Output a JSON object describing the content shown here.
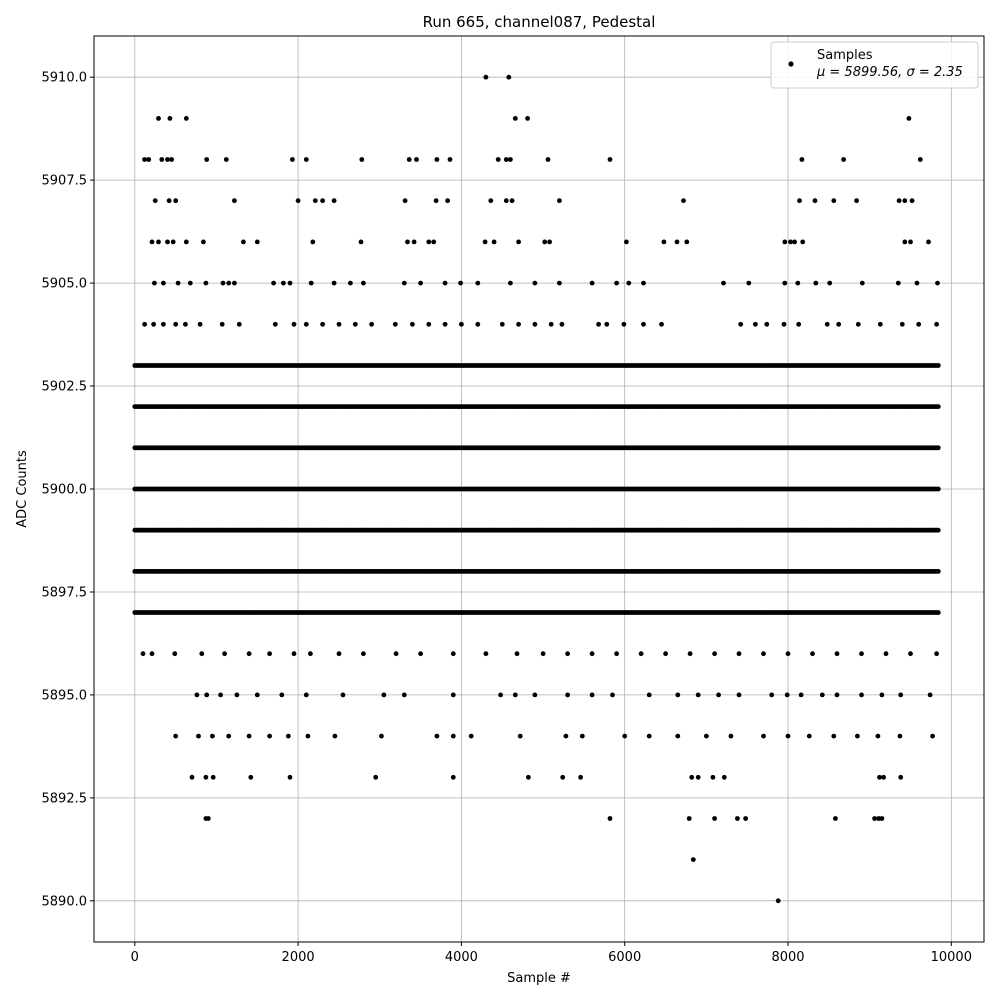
{
  "chart_data": {
    "type": "scatter",
    "title": "Run 665, channel087, Pedestal",
    "xlabel": "Sample #",
    "ylabel": "ADC Counts",
    "xlim": [
      -500,
      10400
    ],
    "ylim": [
      5889.0,
      5911.0
    ],
    "x_ticks": [
      0,
      2000,
      4000,
      6000,
      8000,
      10000
    ],
    "x_tick_labels": [
      "0",
      "2000",
      "4000",
      "6000",
      "8000",
      "10000"
    ],
    "y_ticks": [
      5890.0,
      5892.5,
      5895.0,
      5897.5,
      5900.0,
      5902.5,
      5905.0,
      5907.5,
      5910.0
    ],
    "y_tick_labels": [
      "5890.0",
      "5892.5",
      "5895.0",
      "5897.5",
      "5900.0",
      "5902.5",
      "5905.0",
      "5907.5",
      "5910.0"
    ],
    "grid": true,
    "legend": {
      "position": "top-right",
      "label_line1": "Samples",
      "label_line2": "μ = 5899.56, σ = 2.35"
    },
    "marker_color": "#000000",
    "series": [
      {
        "name": "Samples",
        "level_ranges": [
          {
            "y": 5903,
            "x_start": 0,
            "x_end": 9850
          },
          {
            "y": 5902,
            "x_start": 0,
            "x_end": 9850
          },
          {
            "y": 5901,
            "x_start": 0,
            "x_end": 9850
          },
          {
            "y": 5900,
            "x_start": 0,
            "x_end": 9850
          },
          {
            "y": 5899,
            "x_start": 0,
            "x_end": 9850
          },
          {
            "y": 5898,
            "x_start": 0,
            "x_end": 9850
          },
          {
            "y": 5897,
            "x_start": 0,
            "x_end": 9850
          }
        ],
        "points": [
          [
            4300,
            5910
          ],
          [
            4580,
            5910
          ],
          [
            290,
            5909
          ],
          [
            430,
            5909
          ],
          [
            630,
            5909
          ],
          [
            4660,
            5909
          ],
          [
            4810,
            5909
          ],
          [
            9480,
            5909
          ],
          [
            120,
            5908
          ],
          [
            170,
            5908
          ],
          [
            330,
            5908
          ],
          [
            400,
            5908
          ],
          [
            450,
            5908
          ],
          [
            880,
            5908
          ],
          [
            1120,
            5908
          ],
          [
            1930,
            5908
          ],
          [
            2100,
            5908
          ],
          [
            2780,
            5908
          ],
          [
            3360,
            5908
          ],
          [
            3450,
            5908
          ],
          [
            3700,
            5908
          ],
          [
            3860,
            5908
          ],
          [
            4450,
            5908
          ],
          [
            4550,
            5908
          ],
          [
            4600,
            5908
          ],
          [
            5060,
            5908
          ],
          [
            5820,
            5908
          ],
          [
            8170,
            5908
          ],
          [
            8680,
            5908
          ],
          [
            9620,
            5908
          ],
          [
            250,
            5907
          ],
          [
            420,
            5907
          ],
          [
            500,
            5907
          ],
          [
            1220,
            5907
          ],
          [
            2000,
            5907
          ],
          [
            2210,
            5907
          ],
          [
            2300,
            5907
          ],
          [
            2440,
            5907
          ],
          [
            3310,
            5907
          ],
          [
            3690,
            5907
          ],
          [
            3830,
            5907
          ],
          [
            4360,
            5907
          ],
          [
            4550,
            5907
          ],
          [
            4620,
            5907
          ],
          [
            5200,
            5907
          ],
          [
            6720,
            5907
          ],
          [
            8140,
            5907
          ],
          [
            8330,
            5907
          ],
          [
            8560,
            5907
          ],
          [
            8840,
            5907
          ],
          [
            9360,
            5907
          ],
          [
            9430,
            5907
          ],
          [
            9520,
            5907
          ],
          [
            210,
            5906
          ],
          [
            290,
            5906
          ],
          [
            400,
            5906
          ],
          [
            470,
            5906
          ],
          [
            630,
            5906
          ],
          [
            840,
            5906
          ],
          [
            1330,
            5906
          ],
          [
            1500,
            5906
          ],
          [
            2180,
            5906
          ],
          [
            2770,
            5906
          ],
          [
            3340,
            5906
          ],
          [
            3420,
            5906
          ],
          [
            3600,
            5906
          ],
          [
            3660,
            5906
          ],
          [
            4290,
            5906
          ],
          [
            4400,
            5906
          ],
          [
            4700,
            5906
          ],
          [
            5020,
            5906
          ],
          [
            5080,
            5906
          ],
          [
            6020,
            5906
          ],
          [
            6480,
            5906
          ],
          [
            6640,
            5906
          ],
          [
            6760,
            5906
          ],
          [
            7960,
            5906
          ],
          [
            8030,
            5906
          ],
          [
            8080,
            5906
          ],
          [
            8180,
            5906
          ],
          [
            9430,
            5906
          ],
          [
            9500,
            5906
          ],
          [
            9720,
            5906
          ],
          [
            240,
            5905
          ],
          [
            350,
            5905
          ],
          [
            530,
            5905
          ],
          [
            680,
            5905
          ],
          [
            870,
            5905
          ],
          [
            1080,
            5905
          ],
          [
            1150,
            5905
          ],
          [
            1220,
            5905
          ],
          [
            1700,
            5905
          ],
          [
            1820,
            5905
          ],
          [
            1900,
            5905
          ],
          [
            2160,
            5905
          ],
          [
            2440,
            5905
          ],
          [
            2640,
            5905
          ],
          [
            2800,
            5905
          ],
          [
            3300,
            5905
          ],
          [
            3500,
            5905
          ],
          [
            3800,
            5905
          ],
          [
            3990,
            5905
          ],
          [
            4200,
            5905
          ],
          [
            4600,
            5905
          ],
          [
            4900,
            5905
          ],
          [
            5200,
            5905
          ],
          [
            5600,
            5905
          ],
          [
            5900,
            5905
          ],
          [
            6050,
            5905
          ],
          [
            6230,
            5905
          ],
          [
            7210,
            5905
          ],
          [
            7520,
            5905
          ],
          [
            7960,
            5905
          ],
          [
            8120,
            5905
          ],
          [
            8340,
            5905
          ],
          [
            8510,
            5905
          ],
          [
            8910,
            5905
          ],
          [
            9350,
            5905
          ],
          [
            9580,
            5905
          ],
          [
            9830,
            5905
          ],
          [
            120,
            5904
          ],
          [
            230,
            5904
          ],
          [
            350,
            5904
          ],
          [
            500,
            5904
          ],
          [
            620,
            5904
          ],
          [
            800,
            5904
          ],
          [
            1070,
            5904
          ],
          [
            1280,
            5904
          ],
          [
            1720,
            5904
          ],
          [
            1950,
            5904
          ],
          [
            2100,
            5904
          ],
          [
            2300,
            5904
          ],
          [
            2500,
            5904
          ],
          [
            2700,
            5904
          ],
          [
            2900,
            5904
          ],
          [
            3190,
            5904
          ],
          [
            3400,
            5904
          ],
          [
            3600,
            5904
          ],
          [
            3800,
            5904
          ],
          [
            4000,
            5904
          ],
          [
            4200,
            5904
          ],
          [
            4500,
            5904
          ],
          [
            4700,
            5904
          ],
          [
            4900,
            5904
          ],
          [
            5100,
            5904
          ],
          [
            5230,
            5904
          ],
          [
            5680,
            5904
          ],
          [
            5780,
            5904
          ],
          [
            5990,
            5904
          ],
          [
            6230,
            5904
          ],
          [
            6450,
            5904
          ],
          [
            7420,
            5904
          ],
          [
            7600,
            5904
          ],
          [
            7740,
            5904
          ],
          [
            7950,
            5904
          ],
          [
            8130,
            5904
          ],
          [
            8480,
            5904
          ],
          [
            8620,
            5904
          ],
          [
            8860,
            5904
          ],
          [
            9130,
            5904
          ],
          [
            9400,
            5904
          ],
          [
            9600,
            5904
          ],
          [
            9820,
            5904
          ],
          [
            100,
            5896
          ],
          [
            210,
            5896
          ],
          [
            490,
            5896
          ],
          [
            820,
            5896
          ],
          [
            1100,
            5896
          ],
          [
            1400,
            5896
          ],
          [
            1650,
            5896
          ],
          [
            1950,
            5896
          ],
          [
            2150,
            5896
          ],
          [
            2500,
            5896
          ],
          [
            2800,
            5896
          ],
          [
            3200,
            5896
          ],
          [
            3500,
            5896
          ],
          [
            3900,
            5896
          ],
          [
            4300,
            5896
          ],
          [
            4680,
            5896
          ],
          [
            5000,
            5896
          ],
          [
            5300,
            5896
          ],
          [
            5600,
            5896
          ],
          [
            5900,
            5896
          ],
          [
            6200,
            5896
          ],
          [
            6500,
            5896
          ],
          [
            6800,
            5896
          ],
          [
            7100,
            5896
          ],
          [
            7400,
            5896
          ],
          [
            7700,
            5896
          ],
          [
            8000,
            5896
          ],
          [
            8300,
            5896
          ],
          [
            8600,
            5896
          ],
          [
            8900,
            5896
          ],
          [
            9200,
            5896
          ],
          [
            9500,
            5896
          ],
          [
            9820,
            5896
          ],
          [
            760,
            5895
          ],
          [
            880,
            5895
          ],
          [
            1050,
            5895
          ],
          [
            1250,
            5895
          ],
          [
            1500,
            5895
          ],
          [
            1800,
            5895
          ],
          [
            2100,
            5895
          ],
          [
            2550,
            5895
          ],
          [
            3050,
            5895
          ],
          [
            3300,
            5895
          ],
          [
            3900,
            5895
          ],
          [
            4480,
            5895
          ],
          [
            4660,
            5895
          ],
          [
            4900,
            5895
          ],
          [
            5300,
            5895
          ],
          [
            5600,
            5895
          ],
          [
            5850,
            5895
          ],
          [
            6300,
            5895
          ],
          [
            6650,
            5895
          ],
          [
            6900,
            5895
          ],
          [
            7150,
            5895
          ],
          [
            7400,
            5895
          ],
          [
            7800,
            5895
          ],
          [
            7990,
            5895
          ],
          [
            8160,
            5895
          ],
          [
            8420,
            5895
          ],
          [
            8600,
            5895
          ],
          [
            8900,
            5895
          ],
          [
            9150,
            5895
          ],
          [
            9380,
            5895
          ],
          [
            9740,
            5895
          ],
          [
            500,
            5894
          ],
          [
            780,
            5894
          ],
          [
            950,
            5894
          ],
          [
            1150,
            5894
          ],
          [
            1400,
            5894
          ],
          [
            1650,
            5894
          ],
          [
            1880,
            5894
          ],
          [
            2120,
            5894
          ],
          [
            2450,
            5894
          ],
          [
            3020,
            5894
          ],
          [
            3700,
            5894
          ],
          [
            3900,
            5894
          ],
          [
            4120,
            5894
          ],
          [
            4720,
            5894
          ],
          [
            5280,
            5894
          ],
          [
            5480,
            5894
          ],
          [
            6000,
            5894
          ],
          [
            6300,
            5894
          ],
          [
            6650,
            5894
          ],
          [
            7000,
            5894
          ],
          [
            7300,
            5894
          ],
          [
            7700,
            5894
          ],
          [
            8000,
            5894
          ],
          [
            8260,
            5894
          ],
          [
            8560,
            5894
          ],
          [
            8850,
            5894
          ],
          [
            9100,
            5894
          ],
          [
            9370,
            5894
          ],
          [
            9770,
            5894
          ],
          [
            700,
            5893
          ],
          [
            870,
            5893
          ],
          [
            960,
            5893
          ],
          [
            1420,
            5893
          ],
          [
            1900,
            5893
          ],
          [
            2950,
            5893
          ],
          [
            3900,
            5893
          ],
          [
            4820,
            5893
          ],
          [
            5240,
            5893
          ],
          [
            5460,
            5893
          ],
          [
            6820,
            5893
          ],
          [
            6900,
            5893
          ],
          [
            7080,
            5893
          ],
          [
            7220,
            5893
          ],
          [
            9120,
            5893
          ],
          [
            9170,
            5893
          ],
          [
            9380,
            5893
          ],
          [
            870,
            5892
          ],
          [
            900,
            5892
          ],
          [
            5820,
            5892
          ],
          [
            6790,
            5892
          ],
          [
            7100,
            5892
          ],
          [
            7380,
            5892
          ],
          [
            7480,
            5892
          ],
          [
            8580,
            5892
          ],
          [
            9060,
            5892
          ],
          [
            9110,
            5892
          ],
          [
            9150,
            5892
          ],
          [
            6840,
            5891
          ],
          [
            7880,
            5890
          ]
        ]
      }
    ]
  }
}
